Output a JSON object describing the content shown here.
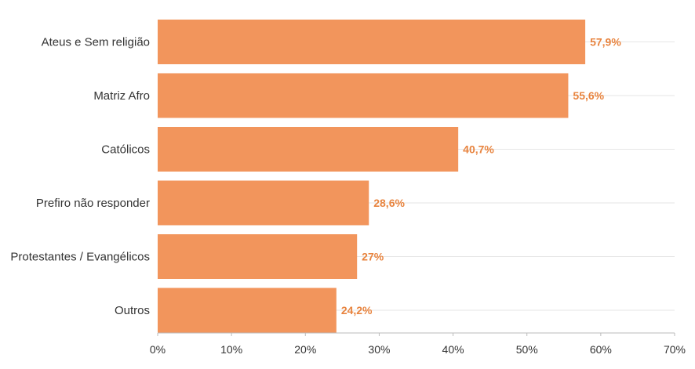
{
  "chart_data": {
    "type": "bar",
    "orientation": "horizontal",
    "categories": [
      "Ateus e Sem religião",
      "Matriz Afro",
      "Católicos",
      "Prefiro não responder",
      "Protestantes / Evangélicos",
      "Outros"
    ],
    "values": [
      57.9,
      55.6,
      40.7,
      28.6,
      27,
      24.2
    ],
    "value_labels": [
      "57,9%",
      "55,6%",
      "40,7%",
      "28,6%",
      "27%",
      "24,2%"
    ],
    "xlim": [
      0,
      70
    ],
    "xticks": [
      0,
      10,
      20,
      30,
      40,
      50,
      60,
      70
    ],
    "xtick_labels": [
      "0%",
      "10%",
      "20%",
      "30%",
      "40%",
      "50%",
      "60%",
      "70%"
    ],
    "grid": true,
    "bar_color": "#f2955c",
    "label_color": "#e8843f",
    "title": "",
    "xlabel": "",
    "ylabel": ""
  }
}
